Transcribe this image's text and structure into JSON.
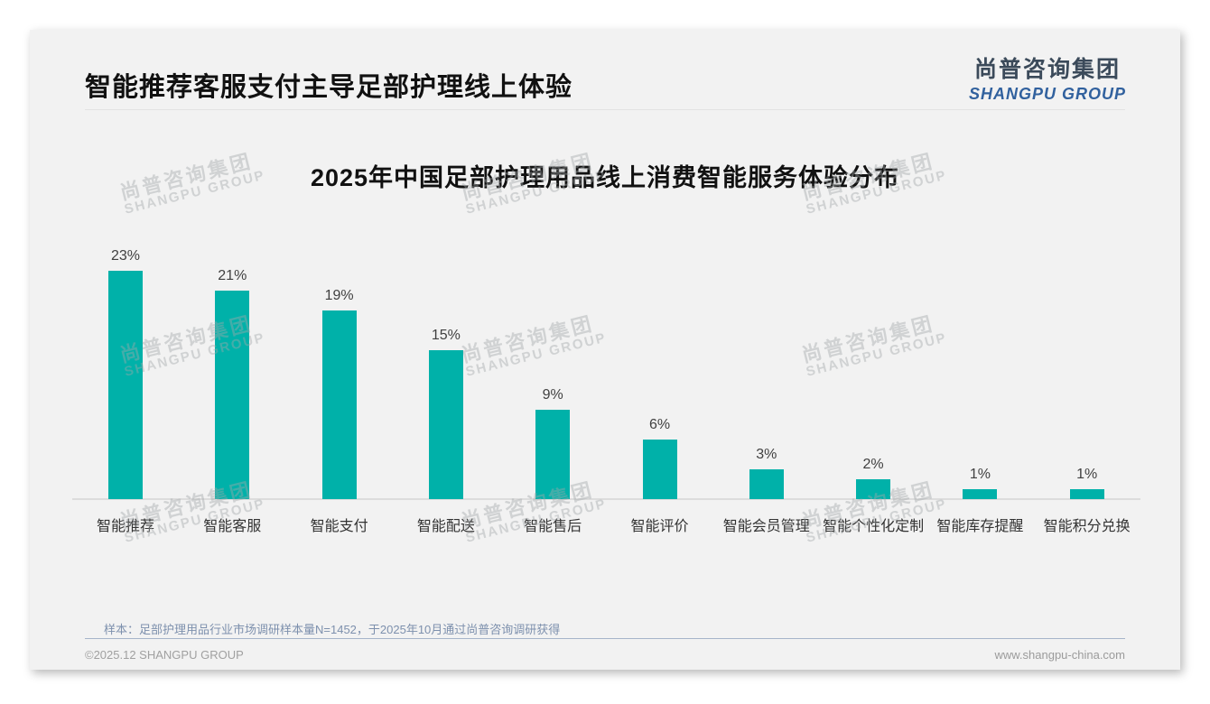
{
  "page": {
    "title": "智能推荐客服支付主导足部护理线上体验",
    "logo": {
      "cn": "尚普咨询集团",
      "en": "SHANGPU GROUP"
    },
    "watermark": {
      "cn": "尚普咨询集团",
      "en": "SHANGPU GROUP"
    },
    "sample_note": "样本：足部护理用品行业市场调研样本量N=1452，于2025年10月通过尚普咨询调研获得",
    "footer_left": "©2025.12 SHANGPU GROUP",
    "footer_right": "www.shangpu-china.com"
  },
  "chart_data": {
    "type": "bar",
    "title": "2025年中国足部护理用品线上消费智能服务体验分布",
    "categories": [
      "智能推荐",
      "智能客服",
      "智能支付",
      "智能配送",
      "智能售后",
      "智能评价",
      "智能会员管理",
      "智能个性化定制",
      "智能库存提醒",
      "智能积分兑换"
    ],
    "values": [
      23,
      21,
      19,
      15,
      9,
      6,
      3,
      2,
      1,
      1
    ],
    "value_labels": [
      "23%",
      "21%",
      "19%",
      "15%",
      "9%",
      "6%",
      "3%",
      "2%",
      "1%",
      "1%"
    ],
    "unit": "%",
    "xlabel": "",
    "ylabel": "",
    "ylim": [
      0,
      25
    ],
    "grid": false,
    "legend": null,
    "data_labels": true,
    "bar_color": "#00b1a9"
  },
  "colors": {
    "bar": "#00b1a9",
    "card_bg": "#f2f2f2",
    "logo_cn": "#3b4a5a",
    "logo_en": "#31619e",
    "note_text": "#7d90ad",
    "footer_text": "#a0a0a0",
    "axis_line": "#dcdcdc"
  }
}
